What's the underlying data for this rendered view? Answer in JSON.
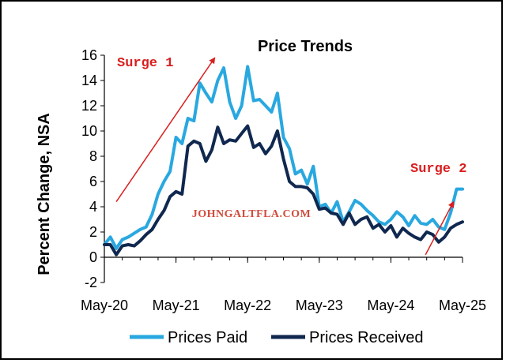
{
  "colors": {
    "prices_paid": "#29a8e0",
    "prices_received": "#10284f",
    "annotation": "#d91e1e",
    "watermark": "#d24b3c"
  },
  "watermark": "JOHNGALTFLA.COM",
  "chart_data": {
    "type": "line",
    "title": "Price Trends",
    "xlabel": "",
    "ylabel": "Percent Change, NSA",
    "ylim": [
      -2,
      16
    ],
    "yticks": [
      -2,
      0,
      2,
      4,
      6,
      8,
      10,
      12,
      14,
      16
    ],
    "xrange": [
      0,
      60
    ],
    "xticks": [
      {
        "pos": 0,
        "label": "May-20"
      },
      {
        "pos": 12,
        "label": "May-21"
      },
      {
        "pos": 24,
        "label": "May-22"
      },
      {
        "pos": 36,
        "label": "May-23"
      },
      {
        "pos": 48,
        "label": "May-24"
      },
      {
        "pos": 60,
        "label": "May-25"
      }
    ],
    "series": [
      {
        "name": "Prices Paid",
        "color_key": "prices_paid",
        "values": [
          1.0,
          1.6,
          0.7,
          1.4,
          1.6,
          1.9,
          2.2,
          2.4,
          3.4,
          5.0,
          6.0,
          6.8,
          9.5,
          9.0,
          11.0,
          10.8,
          13.8,
          13.0,
          12.3,
          14.0,
          15.0,
          12.3,
          11.0,
          12.0,
          15.1,
          12.4,
          12.5,
          12.0,
          11.5,
          13.0,
          9.5,
          8.6,
          6.6,
          6.9,
          5.8,
          7.2,
          4.0,
          4.2,
          3.5,
          4.4,
          2.8,
          3.6,
          4.5,
          4.2,
          3.7,
          3.3,
          2.8,
          2.6,
          3.0,
          3.6,
          3.2,
          2.5,
          3.3,
          2.7,
          2.6,
          3.0,
          2.4,
          2.2,
          3.5,
          5.4,
          5.4
        ]
      },
      {
        "name": "Prices Received",
        "color_key": "prices_received",
        "values": [
          1.0,
          1.0,
          0.2,
          0.9,
          1.0,
          0.9,
          1.3,
          1.8,
          2.2,
          3.0,
          3.7,
          4.8,
          5.2,
          5.0,
          8.8,
          9.2,
          9.0,
          7.6,
          8.5,
          10.3,
          9.0,
          9.3,
          9.2,
          9.8,
          10.4,
          8.7,
          9.0,
          8.2,
          8.8,
          10.0,
          7.8,
          6.0,
          5.6,
          5.6,
          5.5,
          5.0,
          3.8,
          3.9,
          3.5,
          3.4,
          2.6,
          3.5,
          2.6,
          3.0,
          3.2,
          2.3,
          2.6,
          2.0,
          2.5,
          1.6,
          2.3,
          1.9,
          1.6,
          1.4,
          2.0,
          1.8,
          1.2,
          1.6,
          2.3,
          2.6,
          2.8
        ]
      }
    ],
    "annotations": [
      {
        "text": "Surge 1",
        "arrow_from": [
          2,
          4.4
        ],
        "arrow_to": [
          18.5,
          15.8
        ]
      },
      {
        "text": "Surge 2",
        "arrow_from": [
          53.8,
          0.2
        ],
        "arrow_to": [
          58.5,
          4.4
        ]
      }
    ],
    "legend": {
      "position": "bottom-center",
      "entries": [
        "Prices Paid",
        "Prices Received"
      ]
    }
  }
}
